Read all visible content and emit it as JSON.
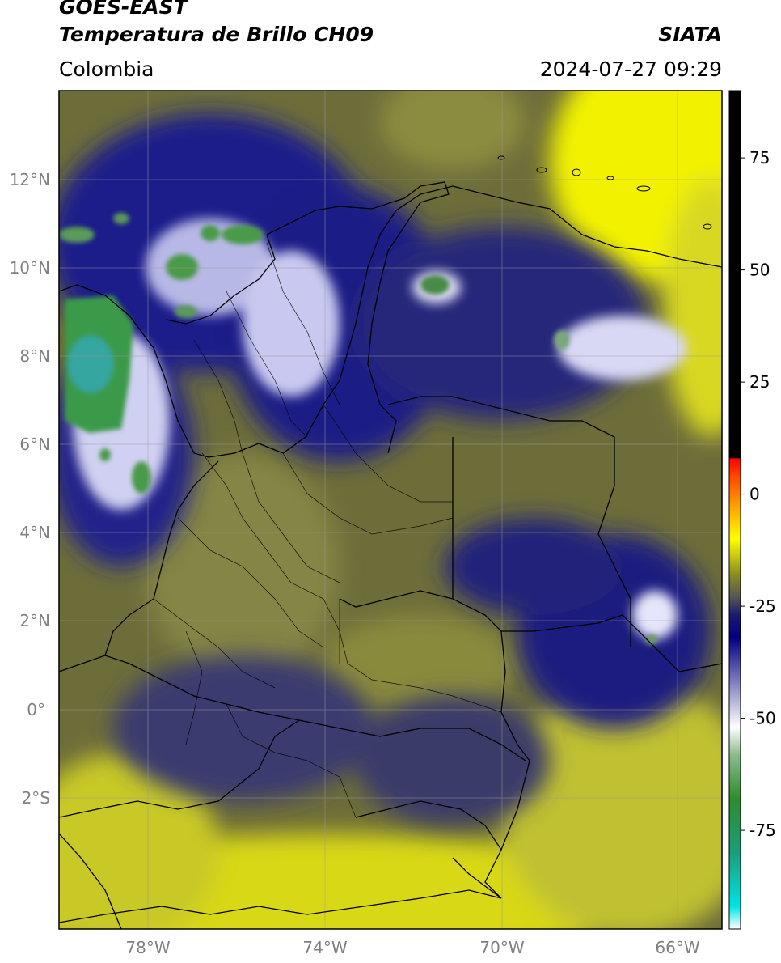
{
  "header": {
    "satellite": "GOES-EAST",
    "product": "Temperatura de Brillo CH09",
    "agency": "SIATA",
    "region": "Colombia",
    "datetime": "2024-07-27 09:29"
  },
  "map": {
    "lat_range": [
      -5,
      14
    ],
    "lon_range": [
      -80,
      -65
    ],
    "lat_labels": [
      "12°N",
      "10°N",
      "8°N",
      "6°N",
      "4°N",
      "2°N",
      "0°",
      "2°S"
    ],
    "lon_labels": [
      "78°W",
      "74°W",
      "70°W",
      "66°W"
    ],
    "cloud_regions": [
      "caribbean-clouds",
      "pacific-cold-tops",
      "andes-convection",
      "venezuela-clouds",
      "amazon-clouds"
    ]
  },
  "colorbar": {
    "ticks": [
      "75",
      "50",
      "25",
      "0",
      "-25",
      "-50",
      "-75"
    ],
    "min": -97,
    "max": 90,
    "stops": [
      {
        "v": -97,
        "c": "#ffffff"
      },
      {
        "v": -92,
        "c": "#00e5e5"
      },
      {
        "v": -80,
        "c": "#1b9e77"
      },
      {
        "v": -68,
        "c": "#2e8b2e"
      },
      {
        "v": -58,
        "c": "#8fbc8f"
      },
      {
        "v": -52,
        "c": "#ffffff"
      },
      {
        "v": -42,
        "c": "#8080c0"
      },
      {
        "v": -32,
        "c": "#000080"
      },
      {
        "v": -27,
        "c": "#1a1a6e"
      },
      {
        "v": -23,
        "c": "#555555"
      },
      {
        "v": -18,
        "c": "#8b8b20"
      },
      {
        "v": -10,
        "c": "#ffff00"
      },
      {
        "v": -3,
        "c": "#ffa500"
      },
      {
        "v": 4,
        "c": "#ff4500"
      },
      {
        "v": 8,
        "c": "#ff0000"
      },
      {
        "v": 8.01,
        "c": "#000000"
      },
      {
        "v": 90,
        "c": "#000000"
      }
    ]
  }
}
